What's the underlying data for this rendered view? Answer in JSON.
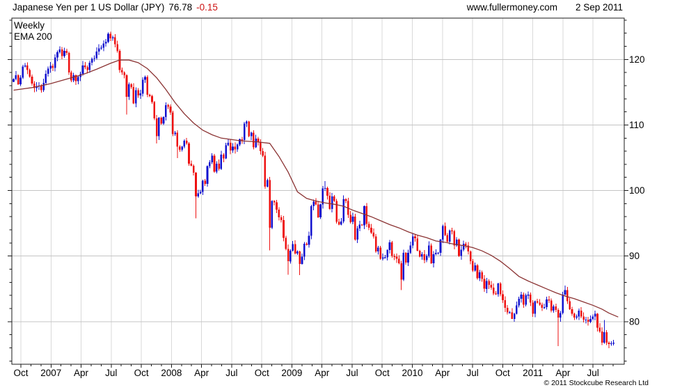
{
  "header": {
    "title_main": "Japanese Yen per 1 US Dollar (JPY)",
    "title_price": "76.78",
    "title_change": "-0.15",
    "website": "www.fullermoney.com",
    "date": "2 Sep 2011"
  },
  "legend": {
    "weekly": "Weekly",
    "ema": "EMA 200"
  },
  "footer": {
    "copyright": "© 2011 Stockcube Research Ltd"
  },
  "colors": {
    "up": "#1212cf",
    "down": "#ee1111",
    "ema": "#8b3333",
    "neg": "#cc1111",
    "grid_h": "#c4c4c4",
    "grid_v": "#d9d9d9",
    "axis": "#1a1a1a",
    "text": "#000000",
    "copyright": "#a8a8a8",
    "background": "#ffffff"
  },
  "chart_data": {
    "type": "candlestick+line",
    "title": "Japanese Yen per 1 US Dollar (JPY) 76.78 -0.15",
    "timeframe": "Weekly",
    "series": [
      "Weekly candles",
      "EMA 200"
    ],
    "start_week": "2006-09-08",
    "end_week": "2011-09-02",
    "ylim": [
      73.5,
      126.3
    ],
    "y_ticks": [
      120,
      110,
      100,
      90,
      80
    ],
    "y_minor_step": 2,
    "x_tick_labels": [
      "Oct",
      "2007",
      "Apr",
      "Jul",
      "Oct",
      "2008",
      "Apr",
      "Jul",
      "Oct",
      "2009",
      "Apr",
      "Jul",
      "Oct",
      "2010",
      "Apr",
      "Jul",
      "Oct",
      "2011",
      "Apr",
      "Jul"
    ],
    "months_total": 60,
    "first_open": 116.6,
    "weekly_closes": [
      117.0,
      117.6,
      116.2,
      117.2,
      118.9,
      119.1,
      118.4,
      117.4,
      116.3,
      115.6,
      115.9,
      116.0,
      115.3,
      116.4,
      117.8,
      118.6,
      119.0,
      118.7,
      120.3,
      121.1,
      121.5,
      120.5,
      121.3,
      121.0,
      118.0,
      116.8,
      117.6,
      116.7,
      117.3,
      117.8,
      119.1,
      118.8,
      118.4,
      119.5,
      120.1,
      120.2,
      121.2,
      121.7,
      121.8,
      122.4,
      122.7,
      123.9,
      123.2,
      123.4,
      122.3,
      121.3,
      118.4,
      118.0,
      117.6,
      114.3,
      116.2,
      115.8,
      113.3,
      115.3,
      114.5,
      114.8,
      116.9,
      117.3,
      114.6,
      114.4,
      113.5,
      111.0,
      108.3,
      111.1,
      110.2,
      111.2,
      113.0,
      112.8,
      111.9,
      108.6,
      108.8,
      106.7,
      106.2,
      106.7,
      107.6,
      107.2,
      104.1,
      103.8,
      102.7,
      99.1,
      99.6,
      99.8,
      101.5,
      101.0,
      103.7,
      104.3,
      105.3,
      102.9,
      104.1,
      103.3,
      105.5,
      104.9,
      106.9,
      107.3,
      106.1,
      106.7,
      106.3,
      107.0,
      107.8,
      107.7,
      110.2,
      110.5,
      108.3,
      108.8,
      106.6,
      107.9,
      107.4,
      106.0,
      105.3,
      100.6,
      101.6,
      94.3,
      98.4,
      98.2,
      97.1,
      95.9,
      95.5,
      92.8,
      91.1,
      89.2,
      90.8,
      91.8,
      90.4,
      90.7,
      88.8,
      89.9,
      91.9,
      91.7,
      93.1,
      97.6,
      98.3,
      97.9,
      95.9,
      97.9,
      100.3,
      100.4,
      99.2,
      97.2,
      99.1,
      98.4,
      95.2,
      94.8,
      95.3,
      98.7,
      98.4,
      96.3,
      95.2,
      96.0,
      92.5,
      94.2,
      94.8,
      94.7,
      97.6,
      94.9,
      94.3,
      93.6,
      93.0,
      90.7,
      91.3,
      89.6,
      89.8,
      89.8,
      90.9,
      92.1,
      90.0,
      89.9,
      89.6,
      88.9,
      86.4,
      90.5,
      89.0,
      90.5,
      91.6,
      93.0,
      92.7,
      90.8,
      89.9,
      90.3,
      89.4,
      90.0,
      91.6,
      88.9,
      90.3,
      90.5,
      90.5,
      92.5,
      94.6,
      93.2,
      92.2,
      93.9,
      93.8,
      91.6,
      92.5,
      90.0,
      91.0,
      91.9,
      91.6,
      90.7,
      89.2,
      87.8,
      88.6,
      86.6,
      87.5,
      86.5,
      85.0,
      86.2,
      85.6,
      85.2,
      84.3,
      84.2,
      85.8,
      84.2,
      83.3,
      82.1,
      81.4,
      81.4,
      80.4,
      81.2,
      82.5,
      83.5,
      84.1,
      82.6,
      84.0,
      84.1,
      82.9,
      81.2,
      83.1,
      82.9,
      82.6,
      82.1,
      82.2,
      83.4,
      83.2,
      81.7,
      82.3,
      81.8,
      80.6,
      81.3,
      84.1,
      84.8,
      83.1,
      81.9,
      81.2,
      80.6,
      80.8,
      81.7,
      80.8,
      80.3,
      80.3,
      80.0,
      80.4,
      80.8,
      81.2,
      79.1,
      78.5,
      76.8,
      78.4,
      76.8,
      76.6,
      76.7,
      76.78
    ],
    "wick_overrides": {
      "41": {
        "high": 124.14
      },
      "49": {
        "low": 111.6
      },
      "62": {
        "low": 107.2
      },
      "71": {
        "low": 104.97
      },
      "79": {
        "low": 95.76
      },
      "101": {
        "high": 110.66
      },
      "111": {
        "low": 90.87
      },
      "119": {
        "low": 87.13
      },
      "124": {
        "low": 87.1
      },
      "135": {
        "high": 101.44
      },
      "168": {
        "low": 84.82
      },
      "186": {
        "high": 94.78
      },
      "210": {
        "high": 85.93
      },
      "216": {
        "low": 80.41
      },
      "236": {
        "low": 76.25
      },
      "239": {
        "high": 85.53
      },
      "256": {
        "high": 80.24
      },
      "258": {
        "low": 75.95
      }
    },
    "wick_base": 0.1,
    "wick_amp": 0.55,
    "ema200": [
      [
        0,
        115.3
      ],
      [
        8,
        115.7
      ],
      [
        16,
        116.3
      ],
      [
        24,
        117.1
      ],
      [
        30,
        117.7
      ],
      [
        36,
        118.5
      ],
      [
        42,
        119.4
      ],
      [
        46,
        119.9
      ],
      [
        50,
        119.9
      ],
      [
        54,
        119.5
      ],
      [
        58,
        118.6
      ],
      [
        62,
        117.2
      ],
      [
        66,
        115.4
      ],
      [
        70,
        113.4
      ],
      [
        74,
        111.7
      ],
      [
        78,
        110.3
      ],
      [
        82,
        109.2
      ],
      [
        86,
        108.5
      ],
      [
        90,
        108.0
      ],
      [
        94,
        107.8
      ],
      [
        98,
        107.6
      ],
      [
        102,
        107.5
      ],
      [
        106,
        107.4
      ],
      [
        111,
        107.2
      ],
      [
        115,
        105.2
      ],
      [
        119,
        102.8
      ],
      [
        123,
        99.8
      ],
      [
        127,
        98.8
      ],
      [
        131,
        98.4
      ],
      [
        135,
        98.1
      ],
      [
        139,
        97.9
      ],
      [
        143,
        97.6
      ],
      [
        147,
        97.0
      ],
      [
        151,
        96.5
      ],
      [
        155,
        96.0
      ],
      [
        159,
        95.4
      ],
      [
        163,
        94.8
      ],
      [
        167,
        94.3
      ],
      [
        171,
        93.7
      ],
      [
        175,
        93.2
      ],
      [
        179,
        92.8
      ],
      [
        183,
        92.3
      ],
      [
        187,
        92.1
      ],
      [
        191,
        91.8
      ],
      [
        195,
        91.6
      ],
      [
        199,
        91.3
      ],
      [
        203,
        90.8
      ],
      [
        207,
        90.1
      ],
      [
        211,
        89.2
      ],
      [
        215,
        88.1
      ],
      [
        219,
        86.9
      ],
      [
        223,
        86.2
      ],
      [
        227,
        85.6
      ],
      [
        231,
        85.0
      ],
      [
        235,
        84.4
      ],
      [
        239,
        83.9
      ],
      [
        243,
        83.5
      ],
      [
        247,
        83.0
      ],
      [
        251,
        82.5
      ],
      [
        255,
        81.9
      ],
      [
        258,
        81.3
      ],
      [
        262,
        80.7
      ]
    ]
  }
}
